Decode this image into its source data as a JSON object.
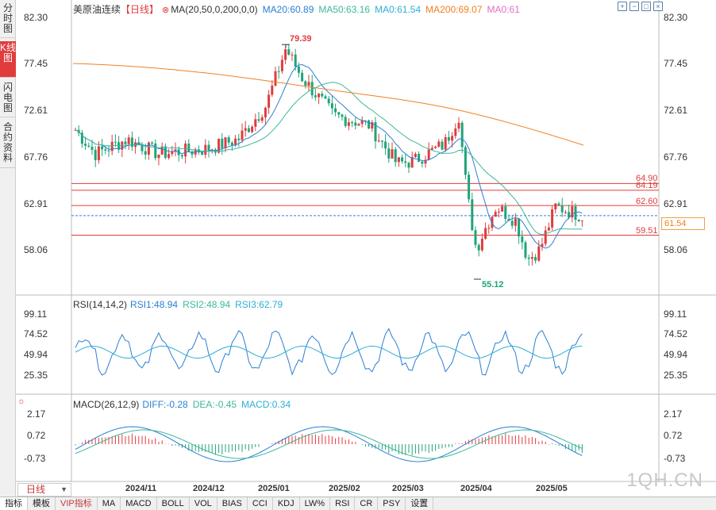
{
  "sidebar": {
    "tabs": [
      {
        "label": "分时图",
        "active": false
      },
      {
        "label": "K线图",
        "active": true
      },
      {
        "label": "闪电图",
        "active": false
      },
      {
        "label": "合约资料",
        "active": false
      }
    ]
  },
  "main_legend": {
    "title": "美原油连续",
    "period_tag": "【日线】",
    "ma_params": "MA(20,50,0,200,0,0)",
    "ma20": "MA20:60.89",
    "ma50": "MA50:63.16",
    "ma0a": "MA0:61.54",
    "ma200": "MA200:69.07",
    "ma0b": "MA0:61"
  },
  "toolbar": {
    "icons": [
      "zoom-in-icon",
      "zoom-out-icon",
      "fullscreen-icon",
      "close-icon"
    ]
  },
  "price_axis": {
    "labels": [
      "82.30",
      "77.45",
      "72.61",
      "67.76",
      "62.91",
      "58.06"
    ]
  },
  "rsi_legend": {
    "name": "RSI(14,14,2)",
    "rsi1": "RSI1:48.94",
    "rsi2": "RSI2:48.94",
    "rsi3": "RSI3:62.79"
  },
  "rsi_axis": {
    "labels": [
      "99.11",
      "74.52",
      "49.94",
      "25.35"
    ]
  },
  "macd_legend": {
    "name": "MACD(26,12,9)",
    "diff": "DIFF:-0.28",
    "dea": "DEA:-0.45",
    "macd": "MACD:0.34"
  },
  "macd_axis": {
    "labels": [
      "2.17",
      "0.72",
      "-0.73"
    ]
  },
  "x_axis": {
    "labels": [
      "2024/11",
      "2024/12",
      "2025/01",
      "2025/02",
      "2025/03",
      "2025/04",
      "2025/05"
    ]
  },
  "annotations": {
    "high": "79.39",
    "low": "55.12",
    "line1": "64.90",
    "line2": "64.19",
    "line3": "62.60",
    "line4": "59.51",
    "current": "61.54"
  },
  "period_button": {
    "label": "日线"
  },
  "bottom_tabs": [
    {
      "label": "指标",
      "active": true,
      "vip": false
    },
    {
      "label": "模板",
      "active": false,
      "vip": false
    },
    {
      "label": "VIP指标",
      "active": false,
      "vip": true
    },
    {
      "label": "MA",
      "active": false,
      "vip": false
    },
    {
      "label": "MACD",
      "active": false,
      "vip": false
    },
    {
      "label": "BOLL",
      "active": false,
      "vip": false
    },
    {
      "label": "VOL",
      "active": false,
      "vip": false
    },
    {
      "label": "BIAS",
      "active": false,
      "vip": false
    },
    {
      "label": "CCI",
      "active": false,
      "vip": false
    },
    {
      "label": "KDJ",
      "active": false,
      "vip": false
    },
    {
      "label": "LW%",
      "active": false,
      "vip": false
    },
    {
      "label": "RSI",
      "active": false,
      "vip": false
    },
    {
      "label": "CR",
      "active": false,
      "vip": false
    },
    {
      "label": "PSY",
      "active": false,
      "vip": false
    },
    {
      "label": "设置",
      "active": false,
      "vip": false
    }
  ],
  "watermark": "1QH.CN",
  "colors": {
    "up": "#e03c3c",
    "down": "#1fa37a",
    "ma20": "#2b7fd4",
    "ma50": "#3cb89a",
    "ma200": "#f08020",
    "ma0b": "#e070c0"
  },
  "chart_data": {
    "type": "candlestick",
    "price_range": [
      55.12,
      82.3
    ],
    "high": 79.39,
    "low": 55.12,
    "horizontal_lines": [
      64.9,
      64.19,
      62.6,
      59.51
    ],
    "current_price": 61.54
  }
}
